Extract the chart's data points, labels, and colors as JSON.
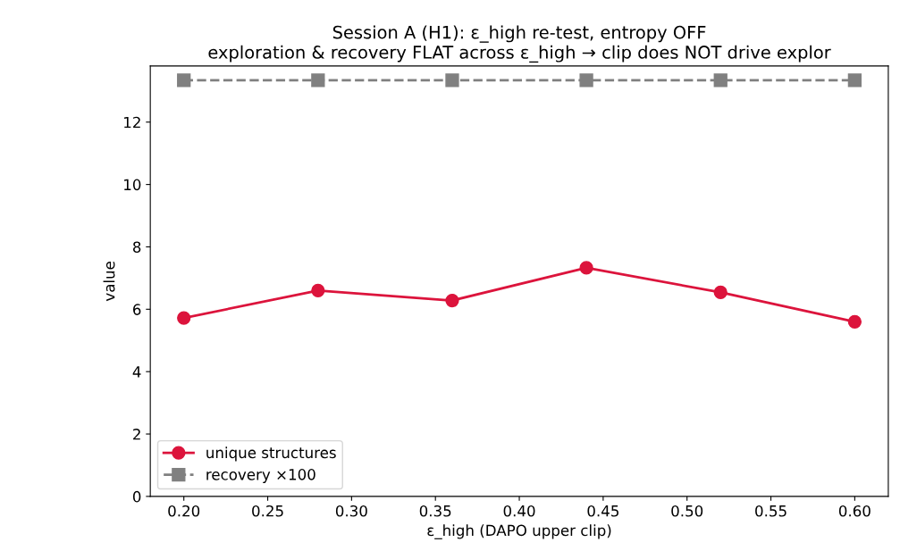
{
  "chart_data": {
    "type": "line",
    "title": "Session A (H1): ε_high re-test, entropy OFF\nexploration & recovery FLAT across ε_high → clip does NOT drive explor",
    "xlabel": "ε_high (DAPO upper clip)",
    "ylabel": "value",
    "x": [
      0.2,
      0.28,
      0.36,
      0.44,
      0.52,
      0.6
    ],
    "series": [
      {
        "name": "unique structures",
        "color": "#dc143c",
        "values": [
          5.72,
          6.6,
          6.28,
          7.33,
          6.54,
          5.6
        ],
        "marker": "circle",
        "line_style": "solid"
      },
      {
        "name": "recovery ×100",
        "color": "#808080",
        "values": [
          13.34,
          13.34,
          13.34,
          13.34,
          13.34,
          13.34
        ],
        "marker": "square",
        "line_style": "dashed"
      }
    ],
    "xlim": [
      0.18,
      0.62
    ],
    "ylim": [
      0,
      13.8
    ],
    "xticks": [
      {
        "value": 0.2,
        "label": "0.20"
      },
      {
        "value": 0.25,
        "label": "0.25"
      },
      {
        "value": 0.3,
        "label": "0.30"
      },
      {
        "value": 0.35,
        "label": "0.35"
      },
      {
        "value": 0.4,
        "label": "0.40"
      },
      {
        "value": 0.45,
        "label": "0.45"
      },
      {
        "value": 0.5,
        "label": "0.50"
      },
      {
        "value": 0.55,
        "label": "0.55"
      },
      {
        "value": 0.6,
        "label": "0.60"
      }
    ],
    "yticks": [
      0,
      2,
      4,
      6,
      8,
      10,
      12
    ],
    "grid": false,
    "legend": "bottom left"
  }
}
